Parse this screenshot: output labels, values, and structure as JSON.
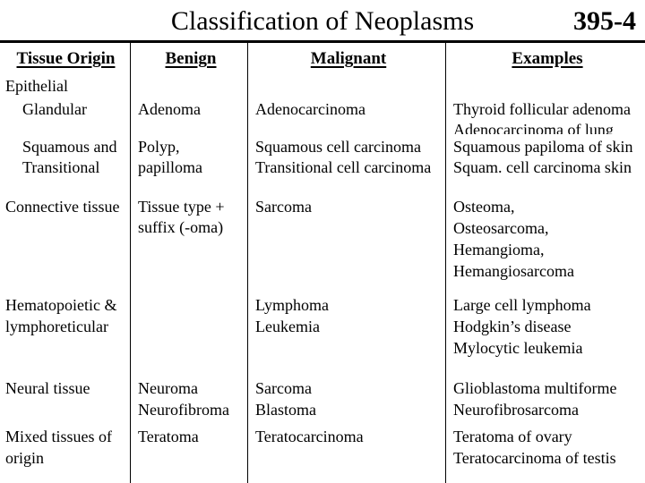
{
  "slide": {
    "title": "Classification of Neoplasms",
    "slide_number": "395-4"
  },
  "table": {
    "headers": [
      "Tissue Origin",
      "Benign",
      "Malignant",
      "Examples"
    ],
    "rows": [
      {
        "tissue_origin": "Epithelial",
        "benign": "",
        "malignant": "",
        "examples": ""
      },
      {
        "tissue_origin": "Glandular",
        "benign": "Adenoma",
        "malignant": "Adenocarcinoma",
        "examples": "Thyroid follicular adenoma\nAdenocarcinoma of lung"
      },
      {
        "tissue_origin": "Squamous and\nTransitional",
        "benign": "Polyp,\npapilloma",
        "malignant": "Squamous cell carcinoma\nTransitional cell carcinoma",
        "examples": "Squamous papiloma of skin\nSquam. cell carcinoma skin"
      },
      {
        "tissue_origin": "Connective tissue",
        "benign": "Tissue type +\nsuffix (-oma)",
        "malignant": "Sarcoma",
        "examples": "Osteoma,\nOsteosarcoma,\nHemangioma,\nHemangiosarcoma"
      },
      {
        "tissue_origin": "Hematopoietic &\nlymphoreticular",
        "benign": "",
        "malignant": "Lymphoma\nLeukemia",
        "examples": "Large cell lymphoma\nHodgkin’s disease\nMylocytic leukemia"
      },
      {
        "tissue_origin": "Neural tissue",
        "benign": "Neuroma\nNeurofibroma",
        "malignant": "Sarcoma\nBlastoma",
        "examples": "Glioblastoma multiforme\nNeurofibrosarcoma"
      },
      {
        "tissue_origin": "Mixed tissues of\norigin",
        "benign": "Teratoma",
        "malignant": "Teratocarcinoma",
        "examples": "Teratoma of ovary\nTeratocarcinoma of testis"
      }
    ]
  }
}
